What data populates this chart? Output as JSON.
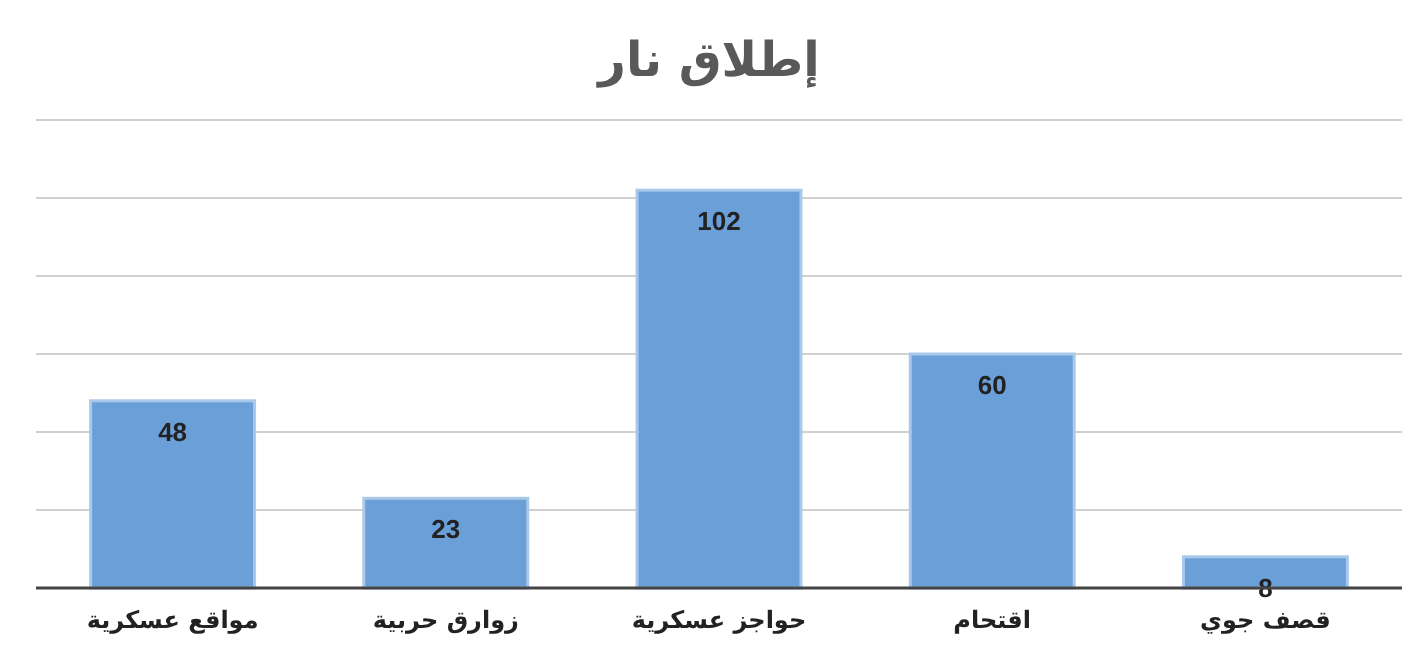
{
  "chart_data": {
    "type": "bar",
    "title": "إطلاق نار",
    "categories": [
      "مواقع عسكرية",
      "زوارق حربية",
      "حواجز عسكرية",
      "اقتحام",
      "قصف جوي"
    ],
    "values": [
      48,
      23,
      102,
      60,
      8
    ],
    "color": "#6a9fd8",
    "ylim": [
      0,
      120
    ],
    "yticks": [
      {
        "value": 0,
        "label": null
      },
      {
        "value": 20,
        "label": null
      },
      {
        "value": 40,
        "label": null
      },
      {
        "value": 60,
        "label": null
      },
      {
        "value": 80,
        "label": null
      },
      {
        "value": 100,
        "label": null
      },
      {
        "value": 120,
        "label": null
      }
    ],
    "grid": true,
    "data_labels": true,
    "tick_labels": "x"
  }
}
